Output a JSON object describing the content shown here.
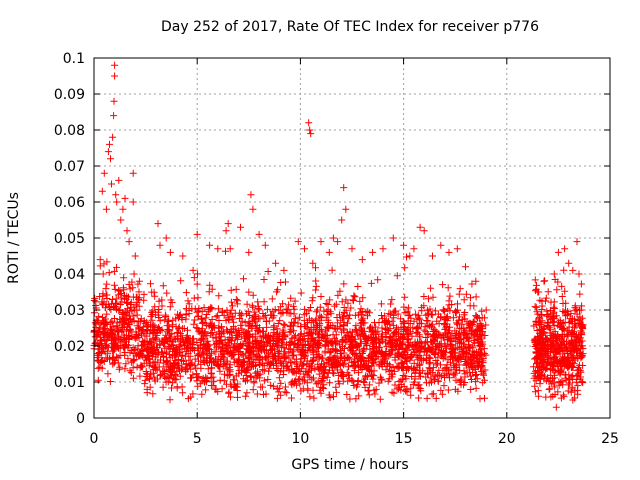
{
  "chart_data": {
    "type": "scatter",
    "title": "Day 252 of 2017, Rate Of TEC Index for receiver p776",
    "xlabel": "GPS time / hours",
    "ylabel": "ROTI / TECUs",
    "xlim": [
      0,
      25
    ],
    "ylim": [
      0,
      0.1
    ],
    "xticks": [
      0,
      5,
      10,
      15,
      20,
      25
    ],
    "xtick_labels": [
      "0",
      "5",
      "10",
      "15",
      "20",
      "25"
    ],
    "yticks": [
      0,
      0.01,
      0.02,
      0.03,
      0.04,
      0.05,
      0.06,
      0.07,
      0.08,
      0.09,
      0.1
    ],
    "ytick_labels": [
      "0",
      "0.01",
      "0.02",
      "0.03",
      "0.04",
      "0.05",
      "0.06",
      "0.07",
      "0.08",
      "0.09",
      "0.1"
    ],
    "grid": true,
    "marker": "plus",
    "color": "#ff0000",
    "series": [
      {
        "segments": [
          {
            "x_start": 0.0,
            "x_end": 19.0
          },
          {
            "x_start": 21.3,
            "x_end": 23.7
          }
        ],
        "points": [
          [
            0.3,
            0.044
          ],
          [
            0.4,
            0.063
          ],
          [
            0.5,
            0.068
          ],
          [
            0.6,
            0.058
          ],
          [
            0.7,
            0.074
          ],
          [
            0.75,
            0.076
          ],
          [
            0.8,
            0.072
          ],
          [
            0.85,
            0.065
          ],
          [
            0.9,
            0.078
          ],
          [
            0.95,
            0.084
          ],
          [
            0.97,
            0.088
          ],
          [
            1.0,
            0.095
          ],
          [
            1.0,
            0.098
          ],
          [
            1.05,
            0.062
          ],
          [
            1.1,
            0.06
          ],
          [
            1.2,
            0.066
          ],
          [
            1.3,
            0.055
          ],
          [
            1.4,
            0.058
          ],
          [
            1.5,
            0.061
          ],
          [
            1.6,
            0.052
          ],
          [
            1.7,
            0.049
          ],
          [
            1.9,
            0.06
          ],
          [
            1.9,
            0.068
          ],
          [
            2.0,
            0.045
          ],
          [
            2.2,
            0.038
          ],
          [
            3.1,
            0.054
          ],
          [
            3.2,
            0.048
          ],
          [
            3.5,
            0.05
          ],
          [
            3.7,
            0.046
          ],
          [
            4.3,
            0.045
          ],
          [
            4.8,
            0.041
          ],
          [
            5.0,
            0.051
          ],
          [
            5.6,
            0.048
          ],
          [
            6.0,
            0.047
          ],
          [
            6.4,
            0.052
          ],
          [
            6.5,
            0.054
          ],
          [
            6.6,
            0.047
          ],
          [
            7.1,
            0.053
          ],
          [
            7.5,
            0.046
          ],
          [
            7.6,
            0.062
          ],
          [
            7.7,
            0.058
          ],
          [
            8.0,
            0.051
          ],
          [
            8.3,
            0.048
          ],
          [
            8.8,
            0.043
          ],
          [
            9.2,
            0.041
          ],
          [
            9.9,
            0.049
          ],
          [
            10.2,
            0.047
          ],
          [
            10.4,
            0.082
          ],
          [
            10.45,
            0.08
          ],
          [
            10.5,
            0.079
          ],
          [
            10.6,
            0.043
          ],
          [
            11.0,
            0.049
          ],
          [
            11.4,
            0.046
          ],
          [
            11.6,
            0.05
          ],
          [
            11.8,
            0.049
          ],
          [
            12.0,
            0.055
          ],
          [
            12.1,
            0.064
          ],
          [
            12.2,
            0.058
          ],
          [
            12.5,
            0.047
          ],
          [
            13.0,
            0.044
          ],
          [
            13.5,
            0.046
          ],
          [
            14.0,
            0.047
          ],
          [
            14.5,
            0.05
          ],
          [
            15.0,
            0.048
          ],
          [
            15.3,
            0.045
          ],
          [
            15.5,
            0.047
          ],
          [
            15.8,
            0.053
          ],
          [
            16.0,
            0.052
          ],
          [
            16.4,
            0.045
          ],
          [
            16.8,
            0.048
          ],
          [
            17.2,
            0.046
          ],
          [
            17.6,
            0.047
          ],
          [
            18.0,
            0.042
          ],
          [
            18.5,
            0.038
          ],
          [
            19.0,
            0.03
          ],
          [
            21.5,
            0.035
          ],
          [
            21.8,
            0.038
          ],
          [
            22.3,
            0.04
          ],
          [
            22.5,
            0.046
          ],
          [
            22.8,
            0.047
          ],
          [
            23.0,
            0.043
          ],
          [
            23.2,
            0.041
          ],
          [
            23.4,
            0.049
          ],
          [
            23.5,
            0.04
          ],
          [
            23.6,
            0.03
          ],
          [
            22.4,
            0.003
          ],
          [
            23.2,
            0.005
          ]
        ]
      }
    ]
  }
}
